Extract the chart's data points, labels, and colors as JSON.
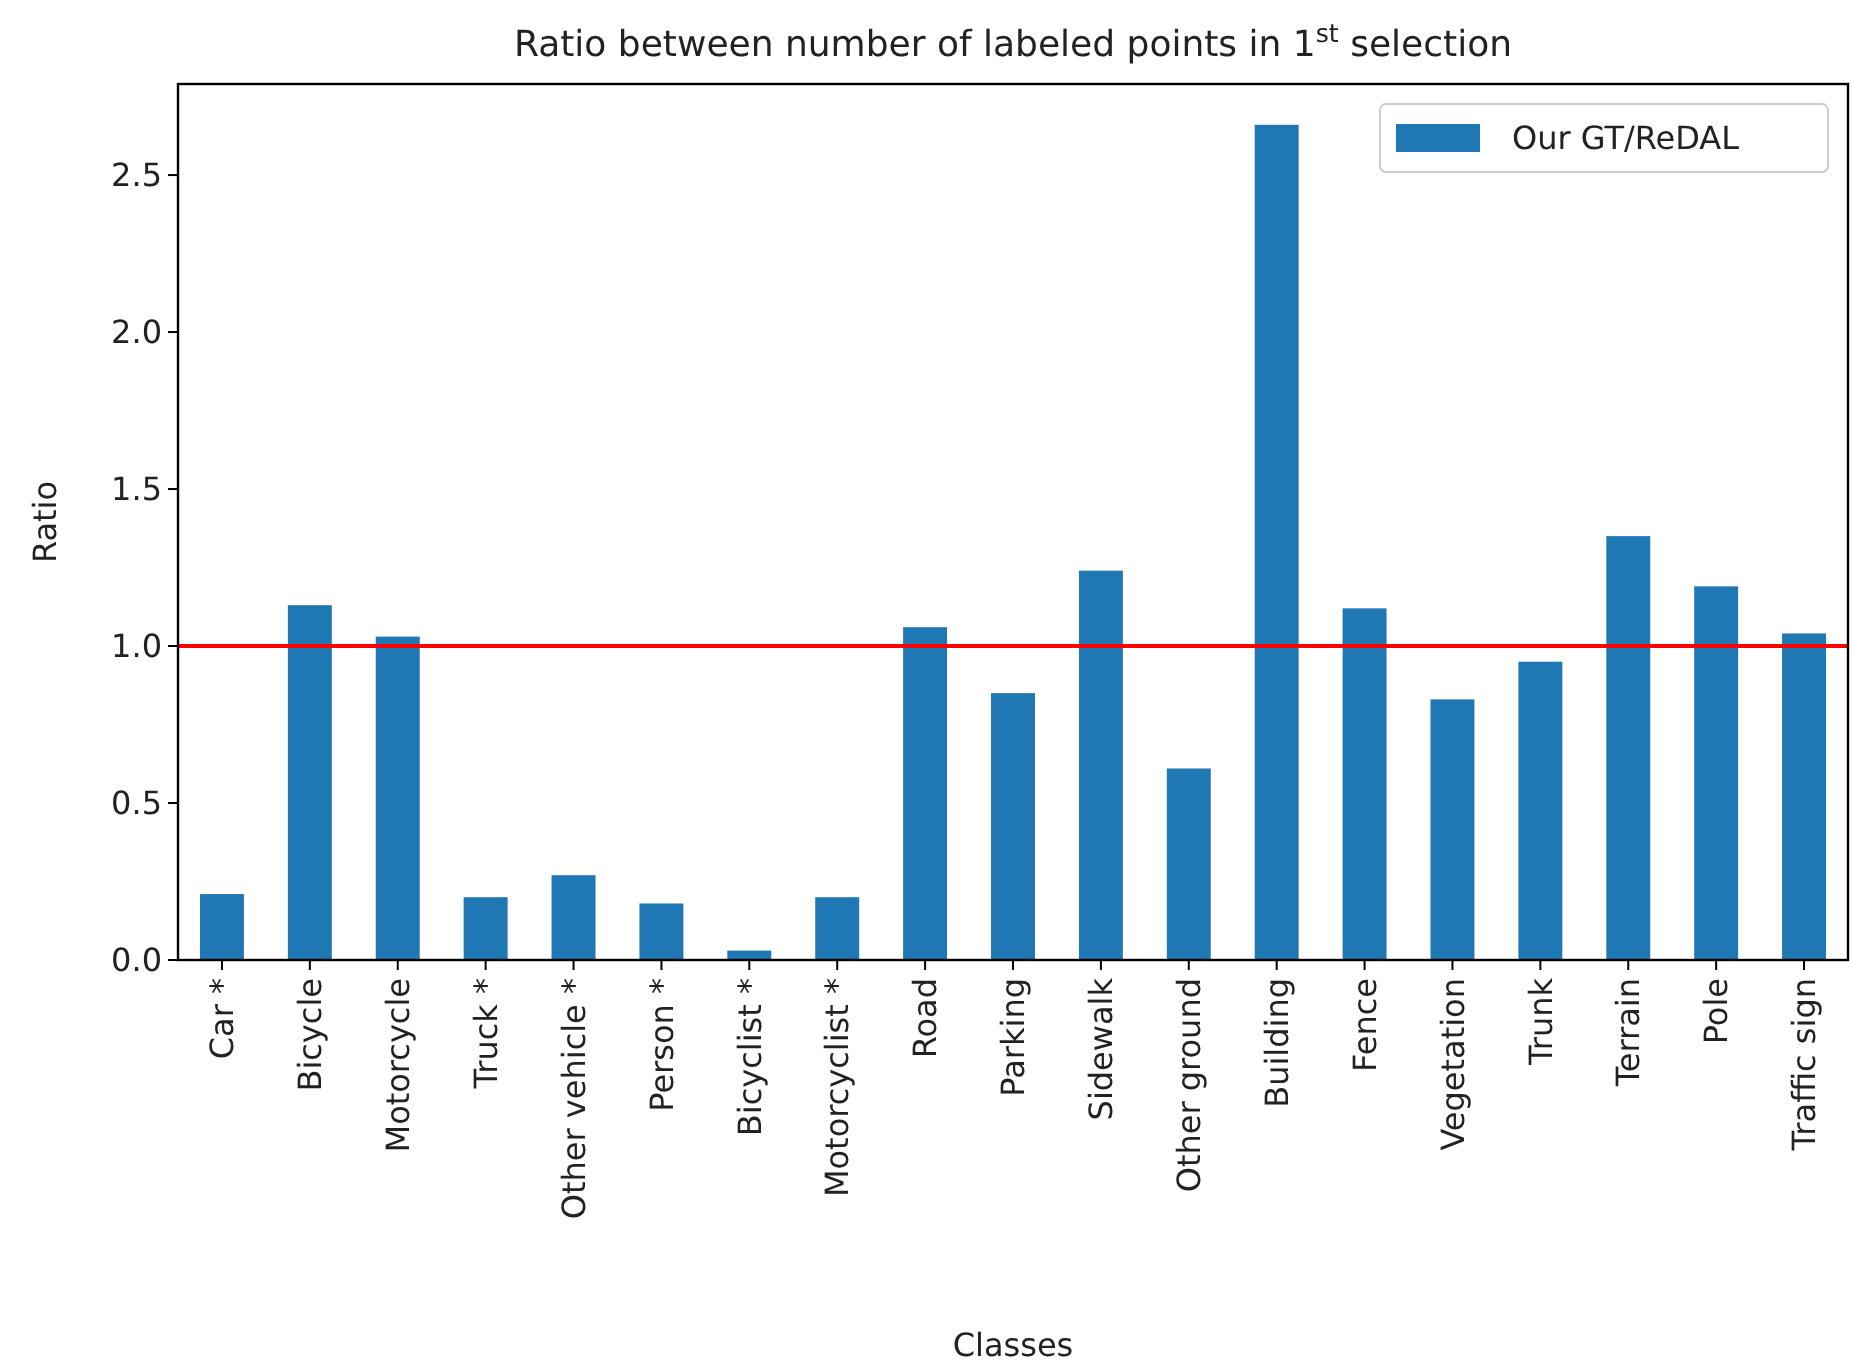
{
  "chart_data": {
    "type": "bar",
    "title": "Ratio between number of labeled points in 1$^{st}$ selection",
    "xlabel": "Classes",
    "ylabel": "Ratio",
    "categories": [
      "Car *",
      "Bicycle",
      "Motorcycle",
      "Truck *",
      "Other vehicle *",
      "Person *",
      "Bicyclist *",
      "Motorcyclist *",
      "Road",
      "Parking",
      "Sidewalk",
      "Other ground",
      "Building",
      "Fence",
      "Vegetation",
      "Trunk",
      "Terrain",
      "Pole",
      "Traffic sign"
    ],
    "series": [
      {
        "name": "Our GT/ReDAL",
        "color": "#1f77b4",
        "values": [
          0.21,
          1.13,
          1.03,
          0.2,
          0.27,
          0.18,
          0.03,
          0.2,
          1.06,
          0.85,
          1.24,
          0.61,
          2.66,
          1.12,
          0.83,
          0.95,
          1.35,
          1.19,
          1.04
        ]
      }
    ],
    "ylim": [
      0,
      2.79
    ],
    "yticks": [
      {
        "value": 0,
        "label": "0.0"
      },
      {
        "value": 0.5,
        "label": "0.5"
      },
      {
        "value": 1,
        "label": "1.0"
      },
      {
        "value": 1.5,
        "label": "1.5"
      },
      {
        "value": 2,
        "label": "2.0"
      },
      {
        "value": 2.5,
        "label": "2.5"
      }
    ],
    "ref_lines": [
      {
        "axis": "y",
        "value": 1,
        "color": "#ff0000"
      }
    ],
    "legend": "top right",
    "grid": false
  }
}
